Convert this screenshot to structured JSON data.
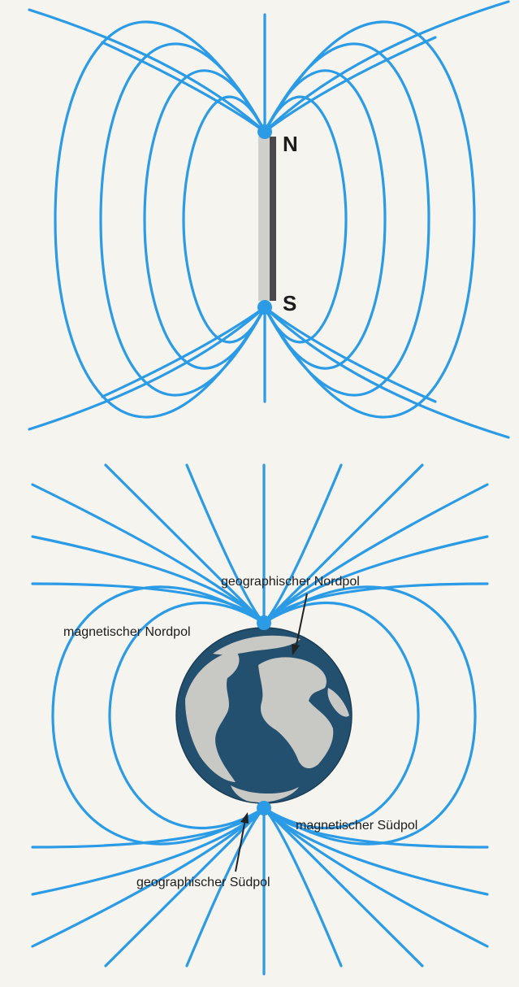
{
  "colors": {
    "field_line": "#2b9be6",
    "background": "#f6f4ef",
    "ocean": "#23506f",
    "land": "#c8c8c4",
    "magnet_light": "#c9c9c6",
    "magnet_dark": "#4a4a4a"
  },
  "bar_magnet": {
    "north_label": "N",
    "south_label": "S"
  },
  "earth": {
    "geographic_north_label": "geographischer Nordpol",
    "magnetic_north_label": "magnetischer Nordpol",
    "magnetic_south_label": "magnetischer Südpol",
    "geographic_south_label": "geographischer Südpol"
  }
}
